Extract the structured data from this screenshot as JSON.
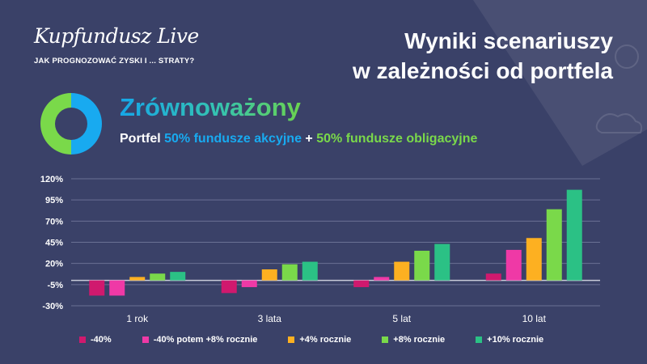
{
  "header": {
    "logo": "Kupfundusz Live",
    "tagline": "JAK PROGNOZOWAĆ ZYSKI I ... STRATY?",
    "title_line1": "Wyniki scenariuszy",
    "title_line2": "w zależności od portfela"
  },
  "portfolio": {
    "name": "Zrównoważony",
    "desc_prefix": "Portfel",
    "desc_part1": "50% fundusze akcyjne",
    "desc_plus": "+",
    "desc_part2": "50% fundusze obligacyjne",
    "donut_split": [
      50,
      50
    ],
    "colors": {
      "equity": "#18aaf0",
      "bond": "#7ad94a"
    }
  },
  "chart_data": {
    "type": "bar",
    "categories": [
      "1 rok",
      "3 lata",
      "5 lat",
      "10 lat"
    ],
    "series": [
      {
        "name": "-40%",
        "color": "#d0196e",
        "values": [
          -18,
          -15,
          -8,
          8
        ]
      },
      {
        "name": "-40% potem +8% rocznie",
        "color": "#ef39a6",
        "values": [
          -18,
          -8,
          4,
          36
        ]
      },
      {
        "name": "+4% rocznie",
        "color": "#fdb021",
        "values": [
          4,
          13,
          22,
          50
        ]
      },
      {
        "name": "+8% rocznie",
        "color": "#7ad94a",
        "values": [
          8,
          19,
          35,
          84
        ]
      },
      {
        "name": "+10% rocznie",
        "color": "#2bc185",
        "values": [
          10,
          22,
          43,
          107
        ]
      }
    ],
    "yticks": [
      "120%",
      "95%",
      "70%",
      "45%",
      "20%",
      "-5%",
      "-30%"
    ],
    "ytick_values": [
      120,
      95,
      70,
      45,
      20,
      -5,
      -30
    ],
    "ylim": [
      -30,
      120
    ],
    "grid": true,
    "legend_position": "bottom"
  }
}
